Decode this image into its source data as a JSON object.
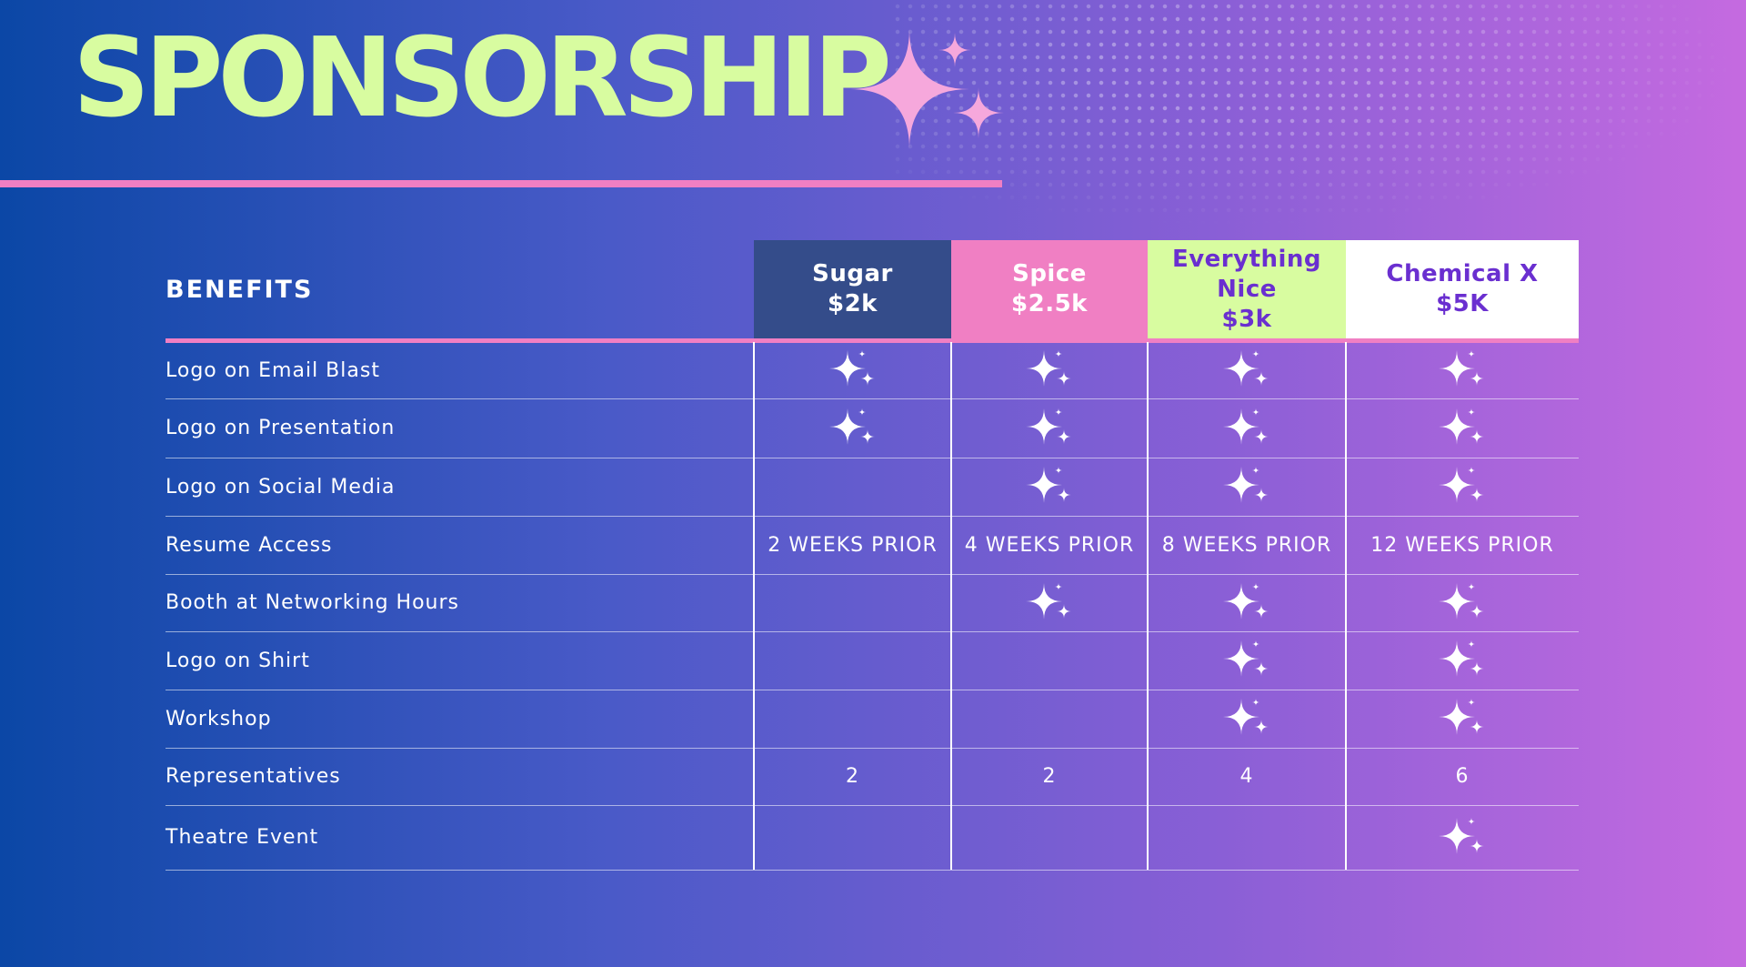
{
  "title": "SPONSORSHIP",
  "table": {
    "header": "BENEFITS",
    "tiers": [
      {
        "name": "Sugar",
        "price": "$2k",
        "color": "#344c8a",
        "text_color": "#ffffff"
      },
      {
        "name": "Spice",
        "price": "$2.5k",
        "color": "#f07fc3",
        "text_color": "#ffffff"
      },
      {
        "name": "Everything Nice",
        "price": "$3k",
        "color": "#d8fca0",
        "text_color": "#6a2fd0"
      },
      {
        "name": "Chemical X",
        "price": "$5K",
        "color": "#ffffff",
        "text_color": "#6a2fd0"
      }
    ],
    "rows": [
      {
        "label": "Logo on Email Blast",
        "cells": [
          true,
          true,
          true,
          true
        ]
      },
      {
        "label": "Logo on Presentation",
        "cells": [
          true,
          true,
          true,
          true
        ]
      },
      {
        "label": "Logo on Social Media",
        "cells": [
          null,
          true,
          true,
          true
        ]
      },
      {
        "label": "Resume Access",
        "cells": [
          "2 WEEKS PRIOR",
          "4 WEEKS PRIOR",
          "8 WEEKS PRIOR",
          "12 WEEKS PRIOR"
        ]
      },
      {
        "label": "Booth at Networking Hours",
        "cells": [
          null,
          true,
          true,
          true
        ]
      },
      {
        "label": "Logo on Shirt",
        "cells": [
          null,
          null,
          true,
          true
        ]
      },
      {
        "label": "Workshop",
        "cells": [
          null,
          null,
          true,
          true
        ]
      },
      {
        "label": "Representatives",
        "cells": [
          2,
          2,
          4,
          6
        ]
      },
      {
        "label": "Theatre Event",
        "cells": [
          null,
          null,
          null,
          true
        ]
      }
    ]
  }
}
